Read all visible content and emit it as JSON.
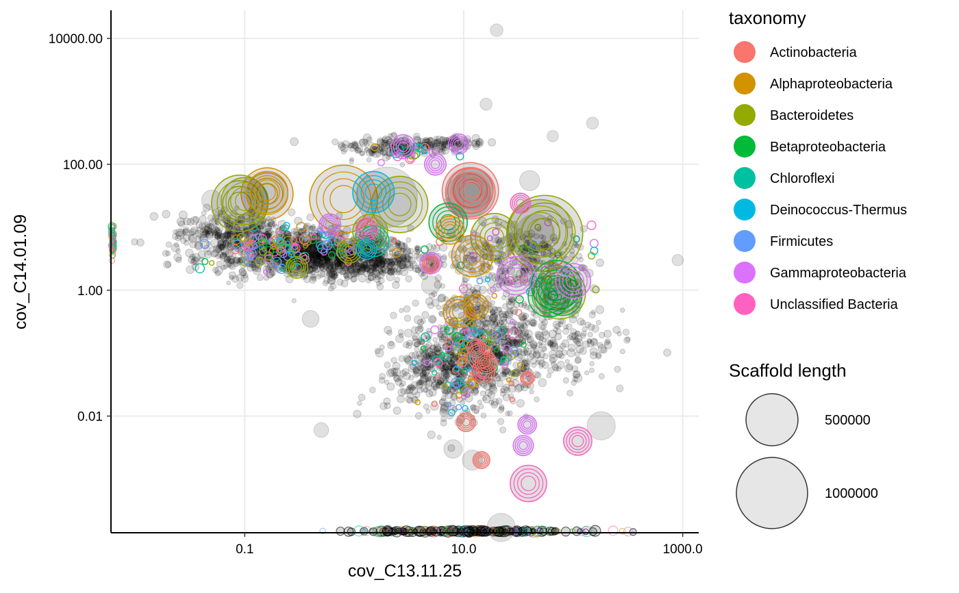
{
  "chart_data": {
    "type": "scatter",
    "xlabel": "cov_C13.11.25",
    "ylabel": "cov_C14.01.09",
    "x_scale": "log10",
    "y_scale": "log10",
    "xlim": [
      0.006,
      1400
    ],
    "ylim": [
      0.00014,
      28000
    ],
    "x_ticks": [
      {
        "value": 0.1,
        "label": "0.1"
      },
      {
        "value": 10,
        "label": "10.0"
      },
      {
        "value": 1000,
        "label": "1000.0"
      }
    ],
    "y_ticks": [
      {
        "value": 0.01,
        "label": "0.01"
      },
      {
        "value": 1,
        "label": "1.00"
      },
      {
        "value": 100,
        "label": "100.00"
      },
      {
        "value": 10000,
        "label": "10000.00"
      }
    ],
    "grid": true,
    "legend_position": "right",
    "taxonomy_legend": {
      "title": "taxonomy",
      "items": [
        {
          "name": "Actinobacteria",
          "color": "#F8766D"
        },
        {
          "name": "Alphaproteobacteria",
          "color": "#D39200"
        },
        {
          "name": "Bacteroidetes",
          "color": "#93AA00"
        },
        {
          "name": "Betaproteobacteria",
          "color": "#00BA38"
        },
        {
          "name": "Chloroflexi",
          "color": "#00C19F"
        },
        {
          "name": "Deinococcus-Thermus",
          "color": "#00B9E3"
        },
        {
          "name": "Firmicutes",
          "color": "#619CFF"
        },
        {
          "name": "Gammaproteobacteria",
          "color": "#DB72FB"
        },
        {
          "name": "Unclassified Bacteria",
          "color": "#FF61C3"
        }
      ]
    },
    "size_legend": {
      "title": "Scaffold length",
      "items": [
        {
          "label": "500000",
          "value": 500000
        },
        {
          "label": "1000000",
          "value": 1000000
        }
      ]
    },
    "colored_points": [
      {
        "x": 11.5,
        "y": 38,
        "len": 600000,
        "taxon": "Actinobacteria"
      },
      {
        "x": 11.5,
        "y": 36,
        "len": 450000,
        "taxon": "Actinobacteria"
      },
      {
        "x": 12.0,
        "y": 40,
        "len": 300000,
        "taxon": "Actinobacteria"
      },
      {
        "x": 14.0,
        "y": 0.09,
        "len": 90000,
        "taxon": "Actinobacteria"
      },
      {
        "x": 15.0,
        "y": 0.05,
        "len": 70000,
        "taxon": "Actinobacteria"
      },
      {
        "x": 16.0,
        "y": 0.07,
        "len": 60000,
        "taxon": "Actinobacteria"
      },
      {
        "x": 13.0,
        "y": 0.12,
        "len": 40000,
        "taxon": "Actinobacteria"
      },
      {
        "x": 10.5,
        "y": 0.008,
        "len": 40000,
        "taxon": "Actinobacteria"
      },
      {
        "x": 14.5,
        "y": 0.002,
        "len": 30000,
        "taxon": "Actinobacteria"
      },
      {
        "x": 38.0,
        "y": 0.04,
        "len": 15000,
        "taxon": "Actinobacteria"
      },
      {
        "x": 5.0,
        "y": 2.6,
        "len": 30000,
        "taxon": "Actinobacteria"
      },
      {
        "x": 0.16,
        "y": 34,
        "len": 500000,
        "taxon": "Alphaproteobacteria"
      },
      {
        "x": 0.16,
        "y": 36,
        "len": 300000,
        "taxon": "Alphaproteobacteria"
      },
      {
        "x": 0.8,
        "y": 28,
        "len": 900000,
        "taxon": "Alphaproteobacteria"
      },
      {
        "x": 12.0,
        "y": 3.5,
        "len": 300000,
        "taxon": "Alphaproteobacteria"
      },
      {
        "x": 9.0,
        "y": 0.45,
        "len": 150000,
        "taxon": "Alphaproteobacteria"
      },
      {
        "x": 13.0,
        "y": 0.55,
        "len": 90000,
        "taxon": "Alphaproteobacteria"
      },
      {
        "x": 7.5,
        "y": 9,
        "len": 120000,
        "taxon": "Alphaproteobacteria"
      },
      {
        "x": 0.09,
        "y": 24,
        "len": 600000,
        "taxon": "Bacteroidetes"
      },
      {
        "x": 0.1,
        "y": 26,
        "len": 400000,
        "taxon": "Bacteroidetes"
      },
      {
        "x": 2.6,
        "y": 23,
        "len": 600000,
        "taxon": "Bacteroidetes"
      },
      {
        "x": 55.0,
        "y": 8,
        "len": 1150000,
        "taxon": "Bacteroidetes"
      },
      {
        "x": 50.0,
        "y": 8.5,
        "len": 800000,
        "taxon": "Bacteroidetes"
      },
      {
        "x": 19.0,
        "y": 7,
        "len": 400000,
        "taxon": "Bacteroidetes"
      },
      {
        "x": 75.0,
        "y": 0.9,
        "len": 500000,
        "taxon": "Bacteroidetes"
      },
      {
        "x": 1.4,
        "y": 8.5,
        "len": 200000,
        "taxon": "Bacteroidetes"
      },
      {
        "x": 0.3,
        "y": 2.3,
        "len": 60000,
        "taxon": "Bacteroidetes"
      },
      {
        "x": 0.9,
        "y": 4.2,
        "len": 80000,
        "taxon": "Bacteroidetes"
      },
      {
        "x": 7.2,
        "y": 12,
        "len": 250000,
        "taxon": "Betaproteobacteria"
      },
      {
        "x": 70.0,
        "y": 1.2,
        "len": 450000,
        "taxon": "Betaproteobacteria"
      },
      {
        "x": 60.0,
        "y": 0.8,
        "len": 300000,
        "taxon": "Betaproteobacteria"
      },
      {
        "x": 80.0,
        "y": 0.8,
        "len": 250000,
        "taxon": "Betaproteobacteria"
      },
      {
        "x": 1.5,
        "y": 6,
        "len": 150000,
        "taxon": "Chloroflexi"
      },
      {
        "x": 1.5,
        "y": 36,
        "len": 300000,
        "taxon": "Deinococcus-Thermus"
      },
      {
        "x": 1.3,
        "y": 4.5,
        "len": 50000,
        "taxon": "Deinococcus-Thermus"
      },
      {
        "x": 2.8,
        "y": 190,
        "len": 80000,
        "taxon": "Gammaproteobacteria"
      },
      {
        "x": 5.5,
        "y": 100,
        "len": 60000,
        "taxon": "Gammaproteobacteria"
      },
      {
        "x": 9.0,
        "y": 210,
        "len": 50000,
        "taxon": "Gammaproteobacteria"
      },
      {
        "x": 30.0,
        "y": 1.7,
        "len": 250000,
        "taxon": "Gammaproteobacteria"
      },
      {
        "x": 100.0,
        "y": 1.4,
        "len": 200000,
        "taxon": "Gammaproteobacteria"
      },
      {
        "x": 5.0,
        "y": 2.7,
        "len": 60000,
        "taxon": "Gammaproteobacteria"
      },
      {
        "x": 0.6,
        "y": 11,
        "len": 60000,
        "taxon": "Gammaproteobacteria"
      },
      {
        "x": 35.0,
        "y": 0.0034,
        "len": 50000,
        "taxon": "Gammaproteobacteria"
      },
      {
        "x": 38.0,
        "y": 0.0073,
        "len": 40000,
        "taxon": "Gammaproteobacteria"
      },
      {
        "x": 110.0,
        "y": 0.004,
        "len": 120000,
        "taxon": "Unclassified Bacteria"
      },
      {
        "x": 39.0,
        "y": 0.00085,
        "len": 220000,
        "taxon": "Unclassified Bacteria"
      },
      {
        "x": 1.3,
        "y": 9.5,
        "len": 60000,
        "taxon": "Unclassified Bacteria"
      },
      {
        "x": 33.0,
        "y": 24,
        "len": 50000,
        "taxon": "Unclassified Bacteria"
      }
    ],
    "grey_points": [
      {
        "x": 2.0,
        "y": 30,
        "len": 700000
      },
      {
        "x": 0.3,
        "y": 4,
        "len": 300000
      },
      {
        "x": 11.0,
        "y": 32,
        "len": 350000
      },
      {
        "x": 45.0,
        "y": 8,
        "len": 250000
      },
      {
        "x": 22.0,
        "y": 0.00017,
        "len": 120000
      },
      {
        "x": 180.0,
        "y": 0.007,
        "len": 120000
      },
      {
        "x": 40.0,
        "y": 55,
        "len": 50000
      },
      {
        "x": 0.05,
        "y": 27,
        "len": 50000
      },
      {
        "x": 20.0,
        "y": 13500,
        "len": 12000
      },
      {
        "x": 16.0,
        "y": 900,
        "len": 10000
      },
      {
        "x": 150.0,
        "y": 450,
        "len": 10000
      },
      {
        "x": 65.0,
        "y": 280,
        "len": 8000
      },
      {
        "x": 900.0,
        "y": 3,
        "len": 8000
      },
      {
        "x": 5.0,
        "y": 1.2,
        "len": 40000
      },
      {
        "x": 0.4,
        "y": 0.35,
        "len": 30000
      },
      {
        "x": 0.5,
        "y": 0.006,
        "len": 20000
      },
      {
        "x": 8.0,
        "y": 0.003,
        "len": 40000
      },
      {
        "x": 12.0,
        "y": 0.002,
        "len": 50000
      }
    ]
  }
}
